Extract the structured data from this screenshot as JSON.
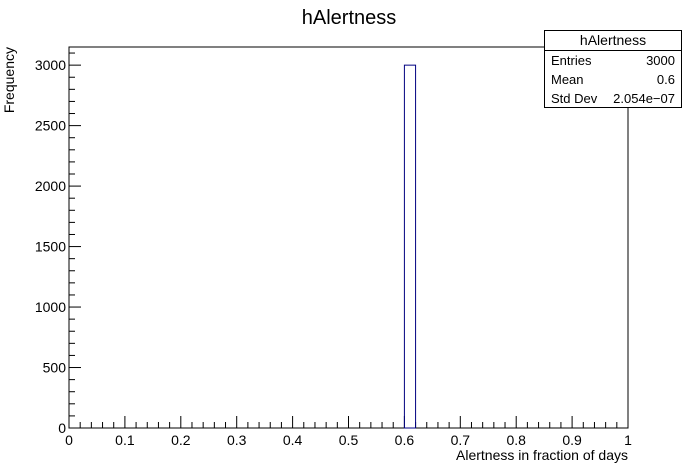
{
  "chart_data": {
    "type": "bar",
    "title": "hAlertness",
    "xlabel": "Alertness in fraction of days",
    "ylabel": "Frequency",
    "xlim": [
      0,
      1
    ],
    "ylim": [
      0,
      3150
    ],
    "x_ticks": [
      {
        "value": 0,
        "label": "0"
      },
      {
        "value": 0.1,
        "label": "0.1"
      },
      {
        "value": 0.2,
        "label": "0.2"
      },
      {
        "value": 0.3,
        "label": "0.3"
      },
      {
        "value": 0.4,
        "label": "0.4"
      },
      {
        "value": 0.5,
        "label": "0.5"
      },
      {
        "value": 0.6,
        "label": "0.6"
      },
      {
        "value": 0.7,
        "label": "0.7"
      },
      {
        "value": 0.8,
        "label": "0.8"
      },
      {
        "value": 0.9,
        "label": "0.9"
      },
      {
        "value": 1,
        "label": "1"
      }
    ],
    "y_ticks": [
      {
        "value": 0,
        "label": "0"
      },
      {
        "value": 500,
        "label": "500"
      },
      {
        "value": 1000,
        "label": "1000"
      },
      {
        "value": 1500,
        "label": "1500"
      },
      {
        "value": 2000,
        "label": "2000"
      },
      {
        "value": 2500,
        "label": "2500"
      },
      {
        "value": 3000,
        "label": "3000"
      }
    ],
    "bins": [
      {
        "x0": 0.6,
        "x1": 0.62,
        "value": 3000
      }
    ],
    "line_color": "#000080",
    "grid": false,
    "legend": "none"
  },
  "stats": {
    "title": "hAlertness",
    "entries_label": "Entries",
    "entries_value": "3000",
    "mean_label": "Mean",
    "mean_value": "0.6",
    "stddev_label": "Std Dev",
    "stddev_value": "2.054e−07"
  }
}
